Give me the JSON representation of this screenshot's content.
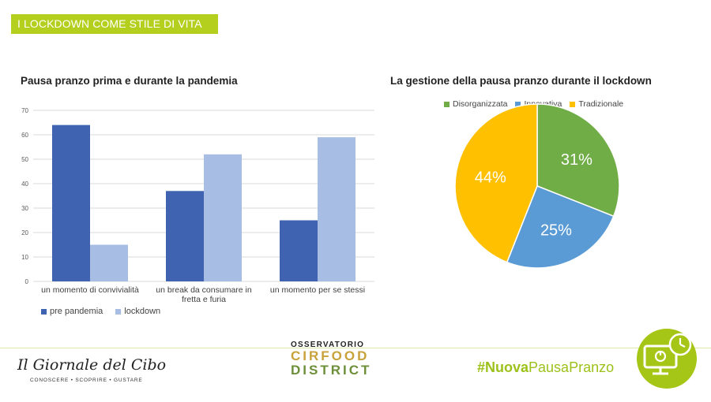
{
  "header": {
    "tag": "I LOCKDOWN COME STILE DI VITA"
  },
  "chart_data": [
    {
      "type": "bar",
      "title": "Pausa pranzo prima e durante la pandemia",
      "categories": [
        "un momento di convivialità",
        "un break da consumare in fretta e furia",
        "un momento per se stessi"
      ],
      "category_lines": [
        [
          "un momento di convivialità"
        ],
        [
          "un break da consumare in",
          "fretta e furia"
        ],
        [
          "un momento per se stessi"
        ]
      ],
      "series": [
        {
          "name": "pre pandemia",
          "values": [
            64,
            37,
            25
          ],
          "color": "#3f63b0"
        },
        {
          "name": "lockdown",
          "values": [
            15,
            52,
            59
          ],
          "color": "#a7bde4"
        }
      ],
      "ylim": [
        0,
        70
      ],
      "yticks": [
        "0",
        "10",
        "20",
        "30",
        "40",
        "50",
        "60",
        "70"
      ],
      "grid": true,
      "legend": "bottom-left"
    },
    {
      "type": "pie",
      "title": "La gestione della pausa pranzo durante il lockdown",
      "slices": [
        {
          "name": "Disorganizzata",
          "value": 31,
          "label": "31%",
          "color": "#70ad47"
        },
        {
          "name": "Innovativa",
          "value": 25,
          "label": "25%",
          "color": "#5b9bd5"
        },
        {
          "name": "Tradizionale",
          "value": 44,
          "label": "44%",
          "color": "#ffc000"
        }
      ],
      "legend": "top"
    }
  ],
  "footer": {
    "giornale_title": "Il Giornale del Cibo",
    "giornale_tagline": "CONOSCERE • SCOPRIRE • GUSTARE",
    "cirfood_line1": "OSSERVATORIO",
    "cirfood_line2": "CIRFOOD",
    "cirfood_line3": "DISTRICT",
    "hashtag_bold": "#Nuova",
    "hashtag_rest": "PausaPranzo"
  },
  "icons": [
    "computer-clock-icon"
  ]
}
